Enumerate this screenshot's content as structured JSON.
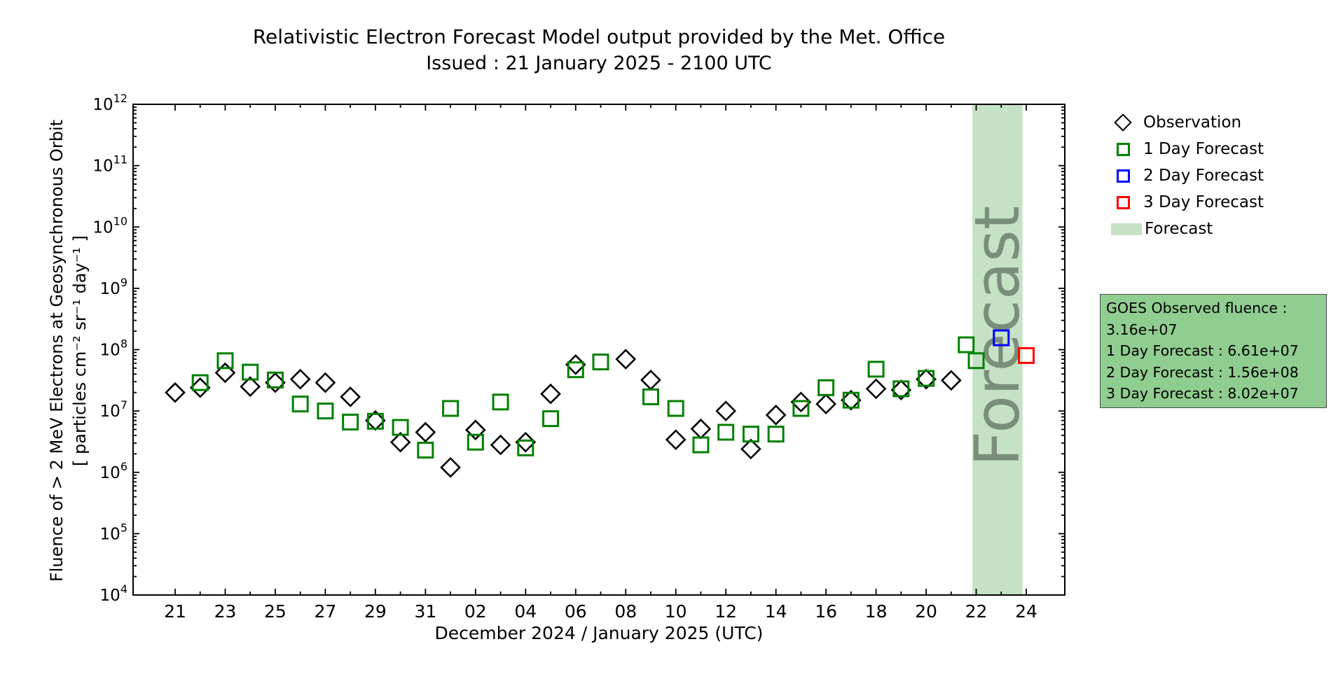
{
  "header": {
    "title": "Relativistic Electron Forecast Model output provided by the Met. Office",
    "subtitle": "Issued : 21 January 2025 - 2100 UTC"
  },
  "legend": {
    "items": [
      {
        "label": "Observation",
        "marker": "diamond",
        "color": "#000000"
      },
      {
        "label": "1 Day Forecast",
        "marker": "square",
        "color": "#008000"
      },
      {
        "label": "2 Day Forecast",
        "marker": "square",
        "color": "#0000ff"
      },
      {
        "label": "3 Day Forecast",
        "marker": "square",
        "color": "#ff0000"
      },
      {
        "label": "Forecast",
        "marker": "patch",
        "color": "#c5e2c5"
      }
    ]
  },
  "info_box": {
    "lines": [
      "GOES Observed fluence : 3.16e+07",
      "1 Day Forecast : 6.61e+07",
      "2 Day Forecast : 1.56e+08",
      "3 Day Forecast : 8.02e+07"
    ],
    "background": "#90cd90",
    "border_color": "#4a4a4a"
  },
  "chart_data": {
    "type": "scatter",
    "title": "Relativistic Electron Forecast Model output provided by the Met. Office",
    "subtitle": "Issued : 21 January 2025 - 2100 UTC",
    "xlabel": "December 2024 / January 2025 (UTC)",
    "ylabel_line1": "Fluence of > 2 MeV Electrons at Geosynchronous Orbit",
    "ylabel_line2": "[ particles cm⁻² sr⁻¹ day⁻¹ ]",
    "y_scale": "log",
    "y_exponent_min": 4,
    "y_exponent_max": 12,
    "x_day_origin_label": "Dec 21",
    "x_tick_days": [
      0,
      2,
      4,
      6,
      8,
      10,
      12,
      14,
      16,
      18,
      20,
      22,
      24,
      26,
      28,
      30,
      32,
      34
    ],
    "x_tick_labels": [
      "21",
      "23",
      "25",
      "27",
      "29",
      "31",
      "02",
      "04",
      "06",
      "08",
      "10",
      "12",
      "14",
      "16",
      "18",
      "20",
      "22",
      "24"
    ],
    "x_minor_days": [
      1,
      3,
      5,
      7,
      9,
      11,
      13,
      15,
      17,
      19,
      21,
      23,
      25,
      27,
      29,
      31,
      33
    ],
    "x_range_days": [
      -1.68,
      35.55
    ],
    "grid": false,
    "legend_position": "outside-right",
    "forecast_band": {
      "day_start": 31.85,
      "day_end": 33.85,
      "label": "Forecast",
      "fill": "#c5e2c5",
      "label_color": "#7b8e7b"
    },
    "series": [
      {
        "name": "Observation",
        "marker": "diamond",
        "color": "#000000",
        "points": [
          {
            "day": 0,
            "value": 20000000.0
          },
          {
            "day": 1,
            "value": 24000000.0
          },
          {
            "day": 2,
            "value": 42000000.0
          },
          {
            "day": 3,
            "value": 25000000.0
          },
          {
            "day": 4,
            "value": 29000000.0
          },
          {
            "day": 5,
            "value": 33000000.0
          },
          {
            "day": 6,
            "value": 29000000.0
          },
          {
            "day": 7,
            "value": 17000000.0
          },
          {
            "day": 8,
            "value": 7000000.0
          },
          {
            "day": 9,
            "value": 3100000.0
          },
          {
            "day": 10,
            "value": 4500000.0
          },
          {
            "day": 11,
            "value": 1200000.0
          },
          {
            "day": 12,
            "value": 4900000.0
          },
          {
            "day": 13,
            "value": 2800000.0
          },
          {
            "day": 14,
            "value": 3100000.0
          },
          {
            "day": 15,
            "value": 19000000.0
          },
          {
            "day": 16,
            "value": 57000000.0
          },
          {
            "day": 18,
            "value": 70000000.0
          },
          {
            "day": 19,
            "value": 32000000.0
          },
          {
            "day": 20,
            "value": 3400000.0
          },
          {
            "day": 21,
            "value": 5100000.0
          },
          {
            "day": 22,
            "value": 10000000.0
          },
          {
            "day": 23,
            "value": 2400000.0
          },
          {
            "day": 24,
            "value": 8600000.0
          },
          {
            "day": 25,
            "value": 14000000.0
          },
          {
            "day": 26,
            "value": 13000000.0
          },
          {
            "day": 27,
            "value": 15000000.0
          },
          {
            "day": 28,
            "value": 23000000.0
          },
          {
            "day": 29,
            "value": 22000000.0
          },
          {
            "day": 30,
            "value": 33000000.0
          },
          {
            "day": 31,
            "value": 31600000.0
          }
        ]
      },
      {
        "name": "1 Day Forecast",
        "marker": "square",
        "color": "#008000",
        "points": [
          {
            "day": 1,
            "value": 29000000.0
          },
          {
            "day": 2,
            "value": 66000000.0
          },
          {
            "day": 3,
            "value": 43000000.0
          },
          {
            "day": 4,
            "value": 32000000.0
          },
          {
            "day": 5,
            "value": 13000000.0
          },
          {
            "day": 6,
            "value": 10000000.0
          },
          {
            "day": 7,
            "value": 6600000.0
          },
          {
            "day": 8,
            "value": 6800000.0
          },
          {
            "day": 9,
            "value": 5400000.0
          },
          {
            "day": 10,
            "value": 2300000.0
          },
          {
            "day": 11,
            "value": 11000000.0
          },
          {
            "day": 12,
            "value": 3100000.0
          },
          {
            "day": 13,
            "value": 14000000.0
          },
          {
            "day": 14,
            "value": 2500000.0
          },
          {
            "day": 15,
            "value": 7500000.0
          },
          {
            "day": 16,
            "value": 47000000.0
          },
          {
            "day": 17,
            "value": 63000000.0
          },
          {
            "day": 19,
            "value": 17000000.0
          },
          {
            "day": 20,
            "value": 11000000.0
          },
          {
            "day": 21,
            "value": 2800000.0
          },
          {
            "day": 22,
            "value": 4500000.0
          },
          {
            "day": 23,
            "value": 4200000.0
          },
          {
            "day": 24,
            "value": 4200000.0
          },
          {
            "day": 25,
            "value": 11000000.0
          },
          {
            "day": 26,
            "value": 24000000.0
          },
          {
            "day": 27,
            "value": 15000000.0
          },
          {
            "day": 28,
            "value": 48000000.0
          },
          {
            "day": 29,
            "value": 23000000.0
          },
          {
            "day": 30,
            "value": 34000000.0
          },
          {
            "day": 31.6,
            "value": 120000000.0
          },
          {
            "day": 32,
            "value": 66100000.0
          }
        ]
      },
      {
        "name": "2 Day Forecast",
        "marker": "square",
        "color": "#0000ff",
        "points": [
          {
            "day": 33,
            "value": 156000000.0
          }
        ]
      },
      {
        "name": "3 Day Forecast",
        "marker": "square",
        "color": "#ff0000",
        "points": [
          {
            "day": 34,
            "value": 80200000.0
          }
        ]
      }
    ]
  }
}
